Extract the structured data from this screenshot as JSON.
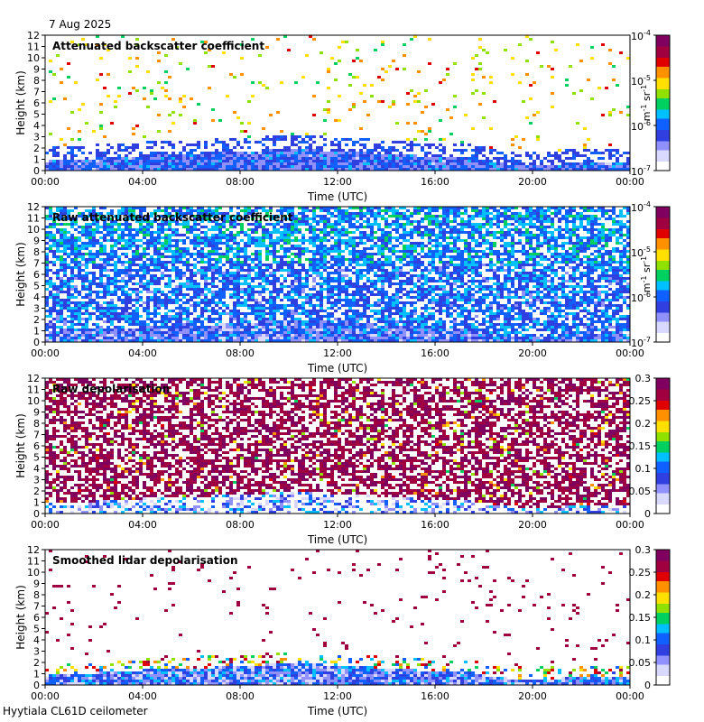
{
  "date": "7 Aug 2025",
  "site": "Hyytiala CL61D ceilometer",
  "colors": {
    "colormap": [
      "#ffffff",
      "#d9d9ff",
      "#9090ff",
      "#3040e0",
      "#1060ff",
      "#00c0ff",
      "#00d060",
      "#90e000",
      "#ffe000",
      "#ff9000",
      "#e00000",
      "#a00040",
      "#800060"
    ]
  },
  "chart_data": [
    {
      "type": "heatmap",
      "title": "Attenuated backscatter coefficient",
      "xlabel": "Time (UTC)",
      "ylabel": "Height (km)",
      "xticks": [
        "00:00",
        "04:00",
        "08:00",
        "12:00",
        "16:00",
        "20:00",
        "00:00"
      ],
      "yticks": [
        "0",
        "1",
        "2",
        "3",
        "4",
        "5",
        "6",
        "7",
        "8",
        "9",
        "10",
        "11",
        "12"
      ],
      "ylim": [
        0,
        12
      ],
      "xlim_hours": [
        0,
        24
      ],
      "colorbar": {
        "scale": "log",
        "ticks": [
          {
            "base": "10",
            "exp": "-4"
          },
          {
            "base": "10",
            "exp": "-5"
          },
          {
            "base": "10",
            "exp": "-6"
          },
          {
            "base": "10",
            "exp": "-7"
          }
        ],
        "unit_main": "m",
        "unit_sup1": "-1",
        "unit_mid": " sr",
        "unit_sup2": "-1"
      }
    },
    {
      "type": "heatmap",
      "title": "Raw attenuated backscatter coefficient",
      "xlabel": "Time (UTC)",
      "ylabel": "Height (km)",
      "xticks": [
        "00:00",
        "04:00",
        "08:00",
        "12:00",
        "16:00",
        "20:00",
        "00:00"
      ],
      "yticks": [
        "0",
        "1",
        "2",
        "3",
        "4",
        "5",
        "6",
        "7",
        "8",
        "9",
        "10",
        "11",
        "12"
      ],
      "ylim": [
        0,
        12
      ],
      "xlim_hours": [
        0,
        24
      ],
      "colorbar": {
        "scale": "log",
        "ticks": [
          {
            "base": "10",
            "exp": "-4"
          },
          {
            "base": "10",
            "exp": "-5"
          },
          {
            "base": "10",
            "exp": "-6"
          },
          {
            "base": "10",
            "exp": "-7"
          }
        ],
        "unit_main": "m",
        "unit_sup1": "-1",
        "unit_mid": " sr",
        "unit_sup2": "-1"
      }
    },
    {
      "type": "heatmap",
      "title": "Raw depolarisation",
      "xlabel": "Time (UTC)",
      "ylabel": "Height (km)",
      "xticks": [
        "00:00",
        "04:00",
        "08:00",
        "12:00",
        "16:00",
        "20:00",
        "00:00"
      ],
      "yticks": [
        "0",
        "1",
        "2",
        "3",
        "4",
        "5",
        "6",
        "7",
        "8",
        "9",
        "10",
        "11",
        "12"
      ],
      "ylim": [
        0,
        12
      ],
      "xlim_hours": [
        0,
        24
      ],
      "colorbar": {
        "scale": "linear",
        "range": [
          0,
          0.3
        ],
        "ticks": [
          "0.3",
          "0.25",
          "0.2",
          "0.15",
          "0.1",
          "0.05",
          "0"
        ]
      }
    },
    {
      "type": "heatmap",
      "title": "Smoothed lidar depolarisation",
      "xlabel": "Time (UTC)",
      "ylabel": "Height (km)",
      "xticks": [
        "00:00",
        "04:00",
        "08:00",
        "12:00",
        "16:00",
        "20:00",
        "00:00"
      ],
      "yticks": [
        "0",
        "1",
        "2",
        "3",
        "4",
        "5",
        "6",
        "7",
        "8",
        "9",
        "10",
        "11",
        "12"
      ],
      "ylim": [
        0,
        12
      ],
      "xlim_hours": [
        0,
        24
      ],
      "colorbar": {
        "scale": "linear",
        "range": [
          0,
          0.3
        ],
        "ticks": [
          "0.3",
          "0.25",
          "0.2",
          "0.15",
          "0.1",
          "0.05",
          "0"
        ]
      }
    }
  ]
}
